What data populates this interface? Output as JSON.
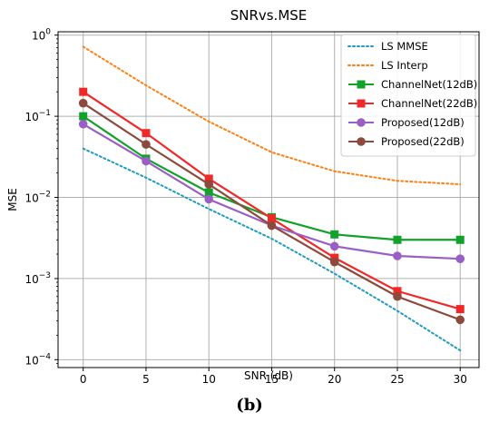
{
  "chart_data": {
    "type": "line",
    "title": "SNRvs.MSE",
    "xlabel": "SNR (dB)",
    "ylabel": "MSE",
    "yscale": "log",
    "xlim": [
      -2,
      31.5
    ],
    "ylim": [
      8e-05,
      1.1
    ],
    "grid": true,
    "legend_position": "top-right",
    "x": [
      0,
      5,
      10,
      15,
      20,
      25,
      30
    ],
    "x_ticks": [
      "0",
      "5",
      "10",
      "15",
      "20",
      "25",
      "30"
    ],
    "y_ticks": [
      {
        "value": 0.0001,
        "base": "10",
        "exp": "−4"
      },
      {
        "value": 0.001,
        "base": "10",
        "exp": "−3"
      },
      {
        "value": 0.01,
        "base": "10",
        "exp": "−2"
      },
      {
        "value": 0.1,
        "base": "10",
        "exp": "−1"
      },
      {
        "value": 1,
        "base": "10",
        "exp": "0"
      }
    ],
    "series": [
      {
        "name": "LS MMSE",
        "color": "#1f9bbf",
        "style": "dotted",
        "marker": "none",
        "values": [
          0.04,
          0.0175,
          0.0072,
          0.0031,
          0.00115,
          0.0004,
          0.00013
        ]
      },
      {
        "name": "LS Interp",
        "color": "#ff7f0e",
        "style": "dotted",
        "marker": "none",
        "values": [
          0.72,
          0.24,
          0.086,
          0.036,
          0.021,
          0.016,
          0.0145
        ]
      },
      {
        "name": "ChannelNet(12dB)",
        "color": "#12a12a",
        "style": "solid",
        "marker": "square",
        "values": [
          0.1,
          0.03,
          0.0115,
          0.0057,
          0.0035,
          0.003,
          0.003
        ]
      },
      {
        "name": "ChannelNet(22dB)",
        "color": "#f02828",
        "style": "solid",
        "marker": "square",
        "values": [
          0.2,
          0.062,
          0.017,
          0.0055,
          0.0018,
          0.0007,
          0.00042
        ]
      },
      {
        "name": "Proposed(12dB)",
        "color": "#9a5fc4",
        "style": "solid",
        "marker": "circle",
        "values": [
          0.08,
          0.028,
          0.0095,
          0.0045,
          0.0025,
          0.0019,
          0.00175
        ]
      },
      {
        "name": "Proposed(22dB)",
        "color": "#8c4a3c",
        "style": "solid",
        "marker": "circle",
        "values": [
          0.145,
          0.045,
          0.0145,
          0.0045,
          0.0016,
          0.0006,
          0.00031
        ]
      }
    ]
  },
  "caption": {
    "label": "(b)"
  }
}
